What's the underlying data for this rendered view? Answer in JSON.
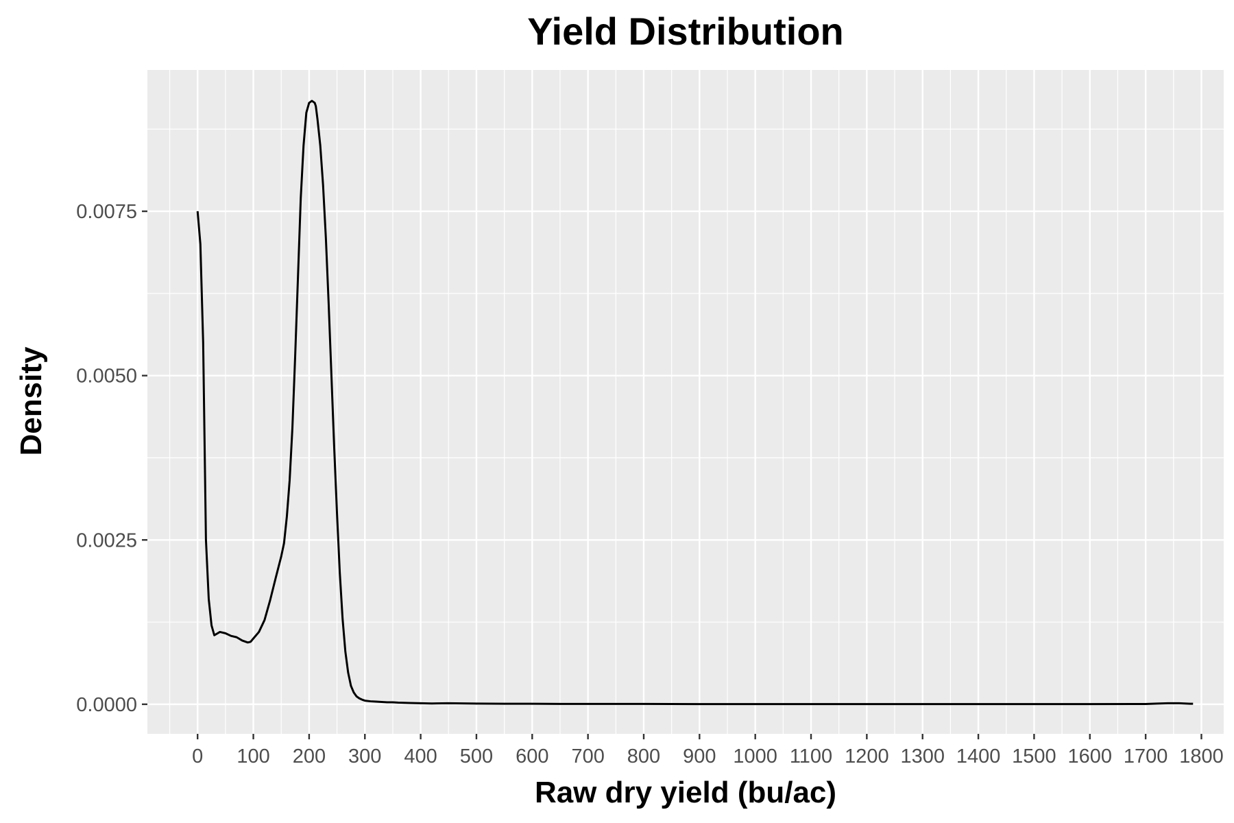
{
  "chart_data": {
    "type": "line",
    "title": "Yield Distribution",
    "xlabel": "Raw dry yield (bu/ac)",
    "ylabel": "Density",
    "xlim": [
      -90,
      1840
    ],
    "ylim": [
      -0.00045,
      0.00965
    ],
    "x_ticks": [
      0,
      100,
      200,
      300,
      400,
      500,
      600,
      700,
      800,
      900,
      1000,
      1100,
      1200,
      1300,
      1400,
      1500,
      1600,
      1700,
      1800
    ],
    "x_tick_labels": [
      "0",
      "100",
      "200",
      "300",
      "400",
      "500",
      "600",
      "700",
      "800",
      "900",
      "1000",
      "1100",
      "1200",
      "1300",
      "1400",
      "1500",
      "1600",
      "1700",
      "1800"
    ],
    "y_ticks": [
      0,
      0.0025,
      0.005,
      0.0075
    ],
    "y_tick_labels": [
      "0.0000",
      "0.0025",
      "0.0050",
      "0.0075"
    ],
    "grid": true,
    "background": "#ebebeb",
    "line_color": "#000000",
    "series": [
      {
        "x": [
          0,
          5,
          10,
          15,
          20,
          25,
          30,
          40,
          50,
          60,
          70,
          80,
          90,
          95,
          100,
          110,
          120,
          130,
          140,
          150,
          155,
          160,
          165,
          170,
          175,
          180,
          185,
          190,
          195,
          200,
          205,
          210,
          212,
          215,
          220,
          225,
          230,
          235,
          240,
          245,
          250,
          255,
          260,
          265,
          270,
          275,
          280,
          285,
          290,
          295,
          300,
          310,
          320,
          330,
          340,
          350,
          360,
          380,
          400,
          420,
          450,
          500,
          550,
          600,
          650,
          700,
          800,
          900,
          1000,
          1100,
          1200,
          1300,
          1400,
          1500,
          1600,
          1700,
          1720,
          1740,
          1760,
          1780,
          1785
        ],
        "y": [
          0.0075,
          0.007,
          0.0055,
          0.0025,
          0.0016,
          0.0012,
          0.00105,
          0.0011,
          0.00108,
          0.00104,
          0.00102,
          0.00097,
          0.00094,
          0.00095,
          0.001,
          0.0011,
          0.00128,
          0.00158,
          0.00192,
          0.00225,
          0.00245,
          0.00285,
          0.0034,
          0.0042,
          0.0053,
          0.0065,
          0.0077,
          0.0085,
          0.009,
          0.00915,
          0.00918,
          0.00915,
          0.0091,
          0.0089,
          0.0085,
          0.0079,
          0.0071,
          0.0061,
          0.005,
          0.0039,
          0.0029,
          0.002,
          0.0013,
          0.0008,
          0.00048,
          0.00028,
          0.00018,
          0.00012,
          9e-05,
          7e-05,
          5.5e-05,
          4.5e-05,
          4e-05,
          3.5e-05,
          3e-05,
          3e-05,
          2.5e-05,
          2e-05,
          1.5e-05,
          1.2e-05,
          1.5e-05,
          1e-05,
          8e-06,
          8e-06,
          5e-06,
          5e-06,
          5e-06,
          3e-06,
          3e-06,
          3e-06,
          2e-06,
          2e-06,
          2e-06,
          2e-06,
          2e-06,
          4e-06,
          1e-05,
          1.5e-05,
          1.5e-05,
          8e-06,
          8e-06
        ]
      }
    ]
  }
}
